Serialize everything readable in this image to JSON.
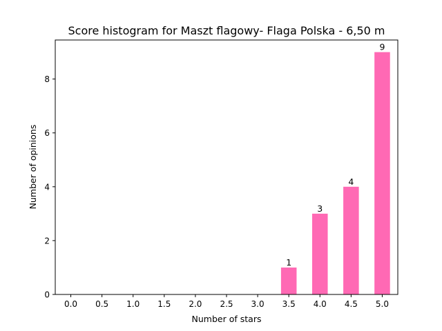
{
  "chart_data": {
    "type": "bar",
    "title": "Score histogram for Maszt flagowy- Flaga Polska - 6,50 m",
    "xlabel": "Number of stars",
    "ylabel": "Number of  opinions",
    "x": [
      0.0,
      0.5,
      1.0,
      1.5,
      2.0,
      2.5,
      3.0,
      3.5,
      4.0,
      4.5,
      5.0
    ],
    "x_tick_labels": [
      "0.0",
      "0.5",
      "1.0",
      "1.5",
      "2.0",
      "2.5",
      "3.0",
      "3.5",
      "4.0",
      "4.5",
      "5.0"
    ],
    "values": [
      0,
      0,
      0,
      0,
      0,
      0,
      0,
      1,
      3,
      4,
      9
    ],
    "y_ticks": [
      0,
      2,
      4,
      6,
      8
    ],
    "y_tick_labels": [
      "0",
      "2",
      "4",
      "6",
      "8"
    ],
    "xlim": [
      -0.25,
      5.25
    ],
    "ylim": [
      0,
      9.45
    ],
    "bar_color": "#ff69b4",
    "grid": false,
    "legend": "none"
  }
}
